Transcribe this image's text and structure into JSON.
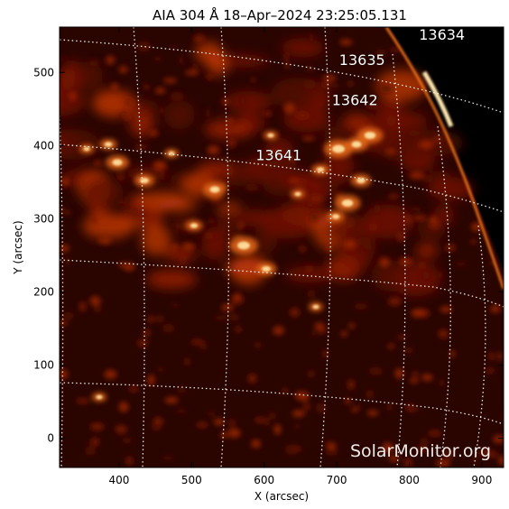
{
  "title": "AIA 304 Å 18–Apr–2024 23:25:05.131",
  "xlabel": "X (arcsec)",
  "ylabel": "Y (arcsec)",
  "xlim": [
    318,
    930
  ],
  "ylim": [
    -40,
    562
  ],
  "xticks": [
    400,
    500,
    600,
    700,
    800,
    900
  ],
  "yticks": [
    0,
    100,
    200,
    300,
    400,
    500
  ],
  "regions": [
    {
      "label": "13634",
      "x": 845,
      "y": 545
    },
    {
      "label": "13635",
      "x": 735,
      "y": 510
    },
    {
      "label": "13642",
      "x": 725,
      "y": 455
    },
    {
      "label": "13641",
      "x": 620,
      "y": 380
    }
  ],
  "watermark": "SolarMonitor.org",
  "colors": {
    "background": "#ffffff",
    "axes": "#000000",
    "disk_dark": "#1a0300",
    "disk_mid": "#8b1a00",
    "disk_bright": "#ff9a2e",
    "grid": "#ffffff",
    "text_on_image": "#ffffff",
    "space": "#000000"
  }
}
